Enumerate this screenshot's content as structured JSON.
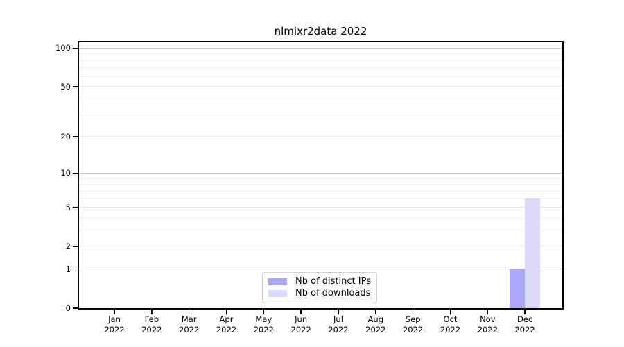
{
  "title": "nlmixr2data 2022",
  "legend": {
    "items": [
      {
        "label": "Nb of distinct IPs",
        "color": "#a8a8f6"
      },
      {
        "label": "Nb of downloads",
        "color": "#d9d9f9"
      }
    ]
  },
  "chart_data": {
    "type": "bar",
    "title": "nlmixr2data 2022",
    "categories": [
      "Jan 2022",
      "Feb 2022",
      "Mar 2022",
      "Apr 2022",
      "May 2022",
      "Jun 2022",
      "Jul 2022",
      "Aug 2022",
      "Sep 2022",
      "Oct 2022",
      "Nov 2022",
      "Dec 2022"
    ],
    "series": [
      {
        "name": "Nb of distinct IPs",
        "color": "#a8a8f6",
        "values": [
          0,
          0,
          0,
          0,
          0,
          0,
          0,
          0,
          0,
          0,
          0,
          1
        ]
      },
      {
        "name": "Nb of downloads",
        "color": "#d9d9f9",
        "values": [
          0,
          0,
          0,
          0,
          0,
          0,
          0,
          0,
          0,
          0,
          0,
          6
        ]
      }
    ],
    "y_scale": "log1p",
    "ylim": [
      0,
      111
    ],
    "y_axis_ticks": [
      100,
      50,
      20,
      10,
      5,
      2,
      1,
      0
    ],
    "y_major_gridlines": [
      1,
      10,
      100
    ],
    "y_mid_gridlines": [
      2,
      5,
      20,
      50
    ],
    "y_minor_gridlines": [
      3,
      4,
      6,
      7,
      8,
      9,
      30,
      40,
      60,
      70,
      80,
      90
    ],
    "grid": "horizontal",
    "legend_position": "inside-bottom-center",
    "colors": {
      "major_grid": "#c8c8c8",
      "mid_grid": "#e4e4e4",
      "minor_grid": "#f1f1f1",
      "frame": "#000000"
    }
  }
}
